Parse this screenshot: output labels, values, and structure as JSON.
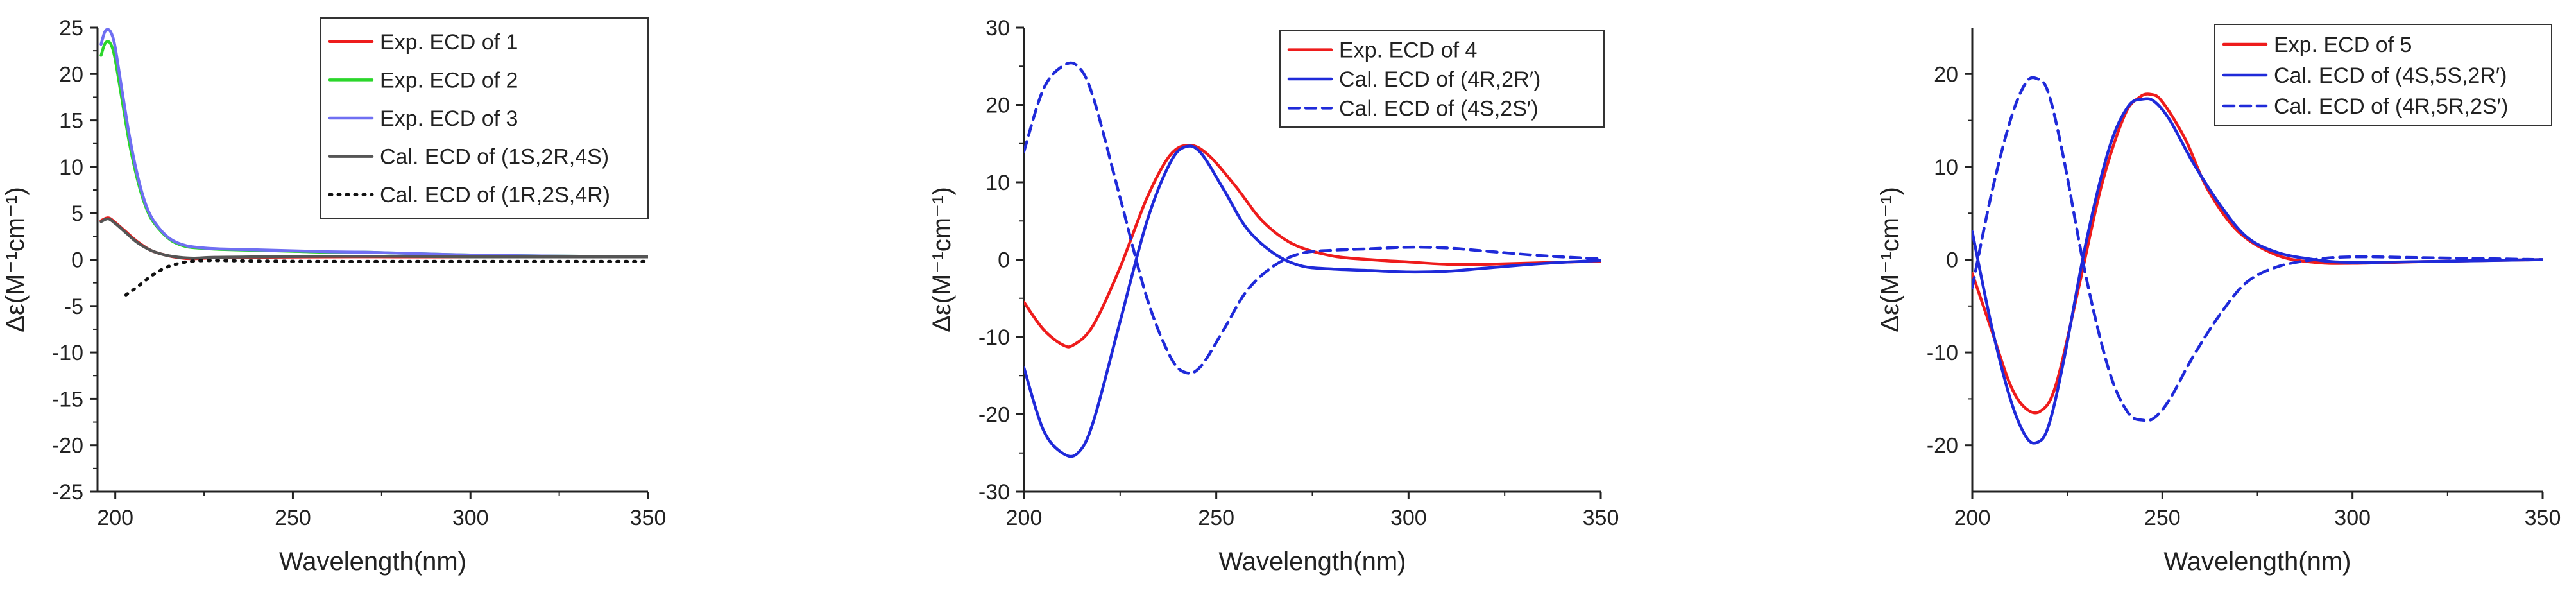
{
  "chart_data": [
    {
      "type": "line",
      "xlabel": "Wavelength(nm)",
      "ylabel": "Δε(M⁻¹cm⁻¹)",
      "xlim": [
        195,
        350
      ],
      "ylim": [
        -25,
        25
      ],
      "xticks": [
        200,
        250,
        300,
        350
      ],
      "yticks": [
        -25,
        -20,
        -15,
        -10,
        -5,
        0,
        5,
        10,
        15,
        20,
        25
      ],
      "legend_position": "top-right",
      "series": [
        {
          "name": "Exp. ECD of 1",
          "color": "#ee1c1c",
          "dash": "solid",
          "x": [
            196,
            198,
            200,
            203,
            206,
            210,
            214,
            218,
            222,
            228,
            240,
            260,
            280,
            300,
            320,
            350
          ],
          "y": [
            4.2,
            4.5,
            4.0,
            3.0,
            2.0,
            1.0,
            0.5,
            0.2,
            0.1,
            0.2,
            0.25,
            0.3,
            0.3,
            0.3,
            0.3,
            0.3
          ]
        },
        {
          "name": "Exp. ECD of 2",
          "color": "#2bd62b",
          "dash": "solid",
          "x": [
            196,
            197,
            198,
            199,
            200,
            202,
            204,
            206,
            208,
            210,
            213,
            216,
            220,
            225,
            230,
            240,
            250,
            260,
            270,
            280,
            300,
            320,
            350
          ],
          "y": [
            22,
            23.2,
            23.5,
            23,
            21.5,
            17,
            12.5,
            9,
            6.3,
            4.5,
            3,
            2,
            1.4,
            1.2,
            1.1,
            1.0,
            0.9,
            0.8,
            0.8,
            0.7,
            0.5,
            0.4,
            0.3
          ]
        },
        {
          "name": "Exp. ECD of 3",
          "color": "#6f6ff2",
          "dash": "solid",
          "x": [
            196,
            197,
            198,
            199,
            200,
            202,
            204,
            206,
            208,
            210,
            213,
            216,
            220,
            225,
            230,
            240,
            250,
            260,
            270,
            280,
            300,
            320,
            350
          ],
          "y": [
            23.2,
            24.5,
            24.8,
            24.3,
            22.8,
            18,
            13.3,
            9.5,
            6.6,
            4.7,
            3.1,
            2.1,
            1.5,
            1.25,
            1.15,
            1.05,
            0.95,
            0.85,
            0.8,
            0.7,
            0.5,
            0.4,
            0.3
          ]
        },
        {
          "name": "Cal. ECD of (1S,2R,4S)",
          "color": "#555555",
          "dash": "solid",
          "x": [
            196,
            198,
            200,
            203,
            206,
            210,
            214,
            218,
            222,
            228,
            240,
            260,
            280,
            300,
            320,
            350
          ],
          "y": [
            4.1,
            4.4,
            3.9,
            2.9,
            1.9,
            1.0,
            0.5,
            0.25,
            0.15,
            0.25,
            0.3,
            0.35,
            0.35,
            0.3,
            0.3,
            0.3
          ]
        },
        {
          "name": "Cal. ECD of (1R,2S,4R)",
          "color": "#111111",
          "dash": "dot",
          "x": [
            203,
            206,
            210,
            214,
            218,
            222,
            228,
            240,
            260,
            280,
            300,
            320,
            350
          ],
          "y": [
            -3.8,
            -3.0,
            -1.8,
            -0.9,
            -0.4,
            -0.15,
            -0.1,
            -0.15,
            -0.2,
            -0.2,
            -0.2,
            -0.2,
            -0.2
          ]
        }
      ]
    },
    {
      "type": "line",
      "xlabel": "Wavelength(nm)",
      "ylabel": "Δε(M⁻¹cm⁻¹)",
      "xlim": [
        200,
        350
      ],
      "ylim": [
        -30,
        30
      ],
      "xticks": [
        200,
        250,
        300,
        350
      ],
      "yticks": [
        -30,
        -20,
        -10,
        0,
        10,
        20,
        30
      ],
      "legend_position": "top-right",
      "series": [
        {
          "name": "Exp. ECD of 4",
          "color": "#ee1c1c",
          "dash": "solid",
          "x": [
            200,
            205,
            210,
            213,
            218,
            225,
            232,
            238,
            243,
            248,
            255,
            262,
            270,
            280,
            290,
            300,
            310,
            320,
            335,
            350
          ],
          "y": [
            -5.5,
            -9,
            -11,
            -11,
            -8.5,
            -1,
            8,
            13.5,
            14.8,
            13.5,
            9.5,
            5,
            2,
            0.5,
            0,
            -0.3,
            -0.6,
            -0.6,
            -0.4,
            -0.2
          ]
        },
        {
          "name": "Cal. ECD of (4R,2R′)",
          "color": "#1f2ad9",
          "dash": "solid",
          "x": [
            200,
            205,
            210,
            214,
            218,
            225,
            232,
            238,
            242,
            246,
            252,
            258,
            265,
            272,
            280,
            290,
            300,
            310,
            320,
            335,
            350
          ],
          "y": [
            -14,
            -22,
            -25,
            -25,
            -21,
            -8,
            5,
            12.5,
            14.6,
            13.8,
            9,
            4,
            0.8,
            -0.8,
            -1.2,
            -1.4,
            -1.6,
            -1.5,
            -1.1,
            -0.5,
            -0.1
          ]
        },
        {
          "name": "Cal. ECD of (4S,2S′)",
          "color": "#1f2ad9",
          "dash": "dash",
          "x": [
            200,
            205,
            210,
            214,
            218,
            225,
            232,
            238,
            242,
            246,
            252,
            258,
            265,
            272,
            280,
            290,
            300,
            310,
            320,
            335,
            350
          ],
          "y": [
            14,
            22,
            25,
            25,
            21,
            8,
            -5,
            -12.5,
            -14.6,
            -13.8,
            -9,
            -4,
            -0.8,
            0.8,
            1.2,
            1.4,
            1.6,
            1.5,
            1.1,
            0.5,
            0.1
          ]
        }
      ]
    },
    {
      "type": "line",
      "xlabel": "Wavelength(nm)",
      "ylabel": "Δε(M⁻¹cm⁻¹)",
      "xlim": [
        200,
        350
      ],
      "ylim": [
        -25,
        25
      ],
      "xticks": [
        200,
        250,
        300,
        350
      ],
      "yticks": [
        -20,
        -10,
        0,
        10,
        20
      ],
      "legend_position": "top-right",
      "series": [
        {
          "name": "Exp. ECD of 5",
          "color": "#ee1c1c",
          "dash": "solid",
          "x": [
            200,
            205,
            210,
            214,
            218,
            222,
            228,
            234,
            240,
            244,
            247,
            250,
            256,
            262,
            270,
            280,
            290,
            300,
            320,
            350
          ],
          "y": [
            -1.5,
            -7.5,
            -13.5,
            -16,
            -16.3,
            -13.5,
            -3,
            8,
            15.5,
            17.5,
            17.8,
            17,
            13,
            7.5,
            3,
            0.5,
            -0.3,
            -0.4,
            -0.2,
            0
          ]
        },
        {
          "name": "Cal. ECD of (4S,5S,2R′)",
          "color": "#1f2ad9",
          "dash": "solid",
          "x": [
            200,
            205,
            210,
            214,
            217,
            220,
            224,
            230,
            236,
            241,
            245,
            248,
            252,
            258,
            265,
            272,
            280,
            290,
            300,
            320,
            350
          ],
          "y": [
            3,
            -7,
            -15,
            -19,
            -19.7,
            -18,
            -11,
            2,
            12,
            16.5,
            17.3,
            17,
            15,
            10.5,
            6,
            2.5,
            0.8,
            0,
            -0.3,
            -0.2,
            0
          ]
        },
        {
          "name": "Cal. ECD of (4R,5R,2S′)",
          "color": "#1f2ad9",
          "dash": "dash",
          "x": [
            200,
            205,
            210,
            214,
            217,
            220,
            224,
            230,
            236,
            241,
            245,
            248,
            252,
            258,
            265,
            272,
            280,
            290,
            300,
            320,
            350
          ],
          "y": [
            -3,
            7,
            15,
            19,
            19.5,
            18,
            11,
            -2,
            -12,
            -16.5,
            -17.3,
            -17,
            -15,
            -10.5,
            -6,
            -2.5,
            -0.8,
            0,
            0.3,
            0.2,
            0
          ]
        }
      ]
    }
  ]
}
